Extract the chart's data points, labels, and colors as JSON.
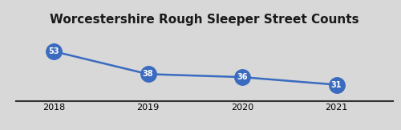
{
  "title": "Worcestershire Rough Sleeper Street Counts",
  "years": [
    2018,
    2019,
    2020,
    2021
  ],
  "values": [
    53,
    38,
    36,
    31
  ],
  "line_color": "#3a6bbf",
  "marker_color": "#3a6bbf",
  "marker_size": 14,
  "label_color": "#ffffff",
  "label_fontsize": 7,
  "title_fontsize": 11,
  "background_color": "#d8d8d8",
  "ylim": [
    20,
    68
  ],
  "xlim": [
    2017.6,
    2021.6
  ],
  "grid_color": "#ffffff",
  "grid_linewidth": 0.8,
  "line_width": 1.8
}
